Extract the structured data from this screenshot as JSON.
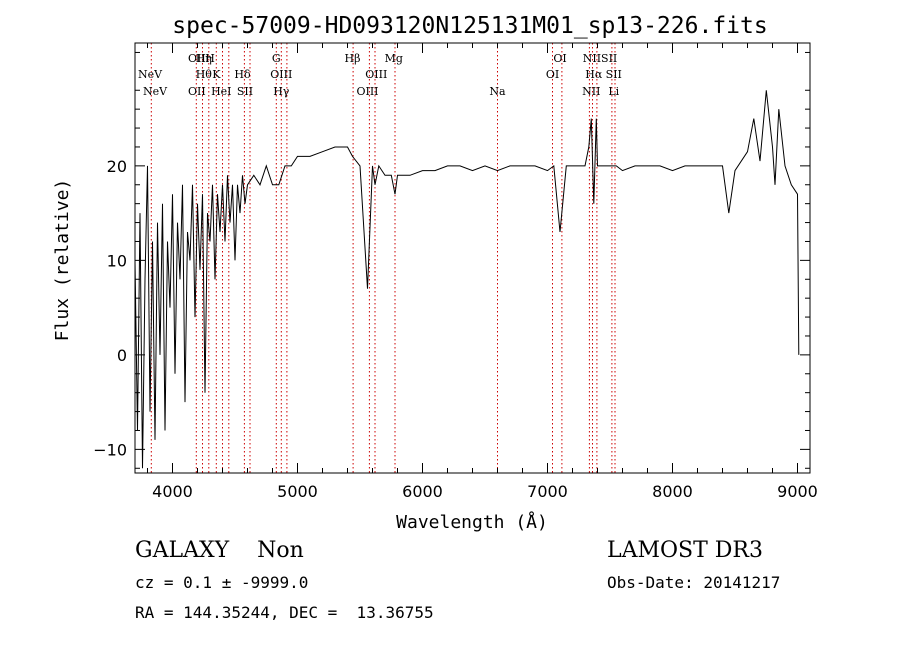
{
  "chart_data": {
    "type": "line",
    "title": "spec-57009-HD093120N125131M01_sp13-226.fits",
    "xlabel": "Wavelength (Å)",
    "ylabel": "Flux (relative)",
    "xlim": [
      3700,
      9100
    ],
    "ylim": [
      -12.5,
      33
    ],
    "xticks": [
      4000,
      5000,
      6000,
      7000,
      8000,
      9000
    ],
    "xtick_labels": [
      "4000",
      "5000",
      "6000",
      "7000",
      "8000",
      "9000"
    ],
    "yticks": [
      -10,
      0,
      10,
      20
    ],
    "ytick_labels": [
      "−10",
      "0",
      "10",
      "20"
    ],
    "line_markers": [
      {
        "label": "NeV",
        "wavelength": 3820,
        "row": 1
      },
      {
        "label": "NeV",
        "wavelength": 3860,
        "row": 2
      },
      {
        "label": "OII",
        "wavelength": 4195,
        "row": 0
      },
      {
        "label": "Hη",
        "wavelength": 4250,
        "row": 0
      },
      {
        "label": "H",
        "wavelength": 4300,
        "row": 0
      },
      {
        "label": "Hθ",
        "wavelength": 4250,
        "row": 1
      },
      {
        "label": "K",
        "wavelength": 4350,
        "row": 1
      },
      {
        "label": "Hδ",
        "wavelength": 4560,
        "row": 1
      },
      {
        "label": "OII",
        "wavelength": 4195,
        "row": 2
      },
      {
        "label": "HeI",
        "wavelength": 4390,
        "row": 2
      },
      {
        "label": "SII",
        "wavelength": 4580,
        "row": 2
      },
      {
        "label": "G",
        "wavelength": 4830,
        "row": 0
      },
      {
        "label": "OIII",
        "wavelength": 4870,
        "row": 1
      },
      {
        "label": "Hγ",
        "wavelength": 4870,
        "row": 2
      },
      {
        "label": "Hβ",
        "wavelength": 5440,
        "row": 0
      },
      {
        "label": "Mg",
        "wavelength": 5770,
        "row": 0
      },
      {
        "label": "OIII",
        "wavelength": 5630,
        "row": 1
      },
      {
        "label": "OIII",
        "wavelength": 5560,
        "row": 2
      },
      {
        "label": "Na",
        "wavelength": 6600,
        "row": 2
      },
      {
        "label": "OI",
        "wavelength": 7100,
        "row": 0
      },
      {
        "label": "OI",
        "wavelength": 7040,
        "row": 1
      },
      {
        "label": "NIISII",
        "wavelength": 7420,
        "row": 0
      },
      {
        "label": "Hα",
        "wavelength": 7370,
        "row": 1
      },
      {
        "label": "SII",
        "wavelength": 7530,
        "row": 1
      },
      {
        "label": "NII",
        "wavelength": 7350,
        "row": 2
      },
      {
        "label": "Li",
        "wavelength": 7530,
        "row": 2
      }
    ],
    "marker_lines": [
      3830,
      4190,
      4240,
      4290,
      4350,
      4400,
      4450,
      4575,
      4620,
      4830,
      4870,
      4915,
      5445,
      5575,
      5620,
      5780,
      6600,
      7040,
      7115,
      7335,
      7360,
      7395,
      7515,
      7540
    ],
    "series": [
      {
        "name": "flux",
        "x": [
          3700,
          3720,
          3740,
          3760,
          3780,
          3800,
          3820,
          3840,
          3860,
          3880,
          3900,
          3920,
          3940,
          3960,
          3980,
          4000,
          4020,
          4040,
          4060,
          4080,
          4100,
          4120,
          4140,
          4160,
          4180,
          4200,
          4220,
          4240,
          4260,
          4280,
          4300,
          4320,
          4340,
          4360,
          4380,
          4400,
          4420,
          4440,
          4460,
          4480,
          4500,
          4520,
          4540,
          4560,
          4580,
          4600,
          4650,
          4700,
          4750,
          4800,
          4850,
          4900,
          4950,
          5000,
          5100,
          5200,
          5300,
          5400,
          5440,
          5500,
          5560,
          5600,
          5620,
          5650,
          5700,
          5750,
          5780,
          5800,
          5850,
          5900,
          6000,
          6100,
          6200,
          6300,
          6400,
          6500,
          6600,
          6700,
          6800,
          6900,
          7000,
          7050,
          7100,
          7150,
          7200,
          7250,
          7300,
          7330,
          7350,
          7370,
          7390,
          7400,
          7450,
          7500,
          7550,
          7600,
          7700,
          7800,
          7900,
          8000,
          8100,
          8200,
          8300,
          8400,
          8450,
          8500,
          8600,
          8650,
          8700,
          8750,
          8800,
          8820,
          8850,
          8900,
          8950,
          9000,
          9010
        ],
        "values": [
          10,
          -8,
          15,
          -12,
          8,
          20,
          -6,
          12,
          -9,
          14,
          0,
          16,
          -8,
          12,
          5,
          17,
          -2,
          14,
          8,
          18,
          -5,
          13,
          10,
          18,
          4,
          16,
          9,
          17,
          -4,
          15,
          12,
          18,
          8,
          17,
          13,
          18,
          12,
          19,
          14,
          18,
          10,
          18,
          15,
          19,
          16,
          18,
          19,
          18,
          20,
          18,
          18,
          20,
          20,
          21,
          21,
          21.5,
          22,
          22,
          21,
          20,
          7,
          20,
          18,
          20,
          19,
          19,
          17,
          19,
          19,
          19,
          19.5,
          19.5,
          20,
          20,
          19.5,
          20,
          19.5,
          20,
          20,
          20,
          19.5,
          20,
          13,
          20,
          20,
          20,
          20,
          22,
          25,
          16,
          25,
          20,
          20,
          20,
          20,
          19.5,
          20,
          20,
          20,
          19.5,
          20,
          20,
          20,
          20,
          15,
          19.5,
          21.5,
          25,
          20.5,
          28,
          22,
          18,
          26,
          20,
          18,
          17,
          0
        ]
      }
    ]
  },
  "info": {
    "class_text": "GALAXY    Non",
    "cz_text": "cz = 0.1 ± -9999.0",
    "radec_text": "RA = 144.35244, DEC =  13.36755",
    "survey": "LAMOST DR3",
    "obs_date": "Obs-Date: 20141217"
  }
}
